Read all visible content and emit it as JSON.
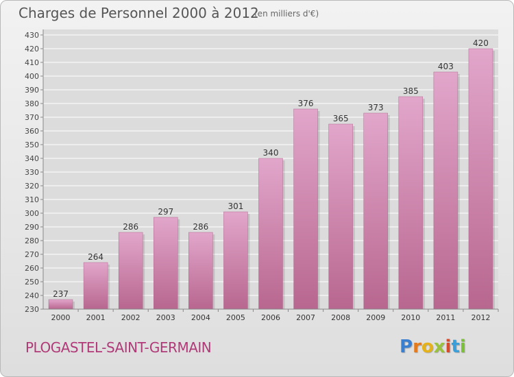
{
  "chart_data": {
    "type": "bar",
    "title": "Charges de Personnel 2000 à 2012",
    "subtitle": "(en milliers d'€)",
    "categories": [
      "2000",
      "2001",
      "2002",
      "2003",
      "2004",
      "2005",
      "2006",
      "2007",
      "2008",
      "2009",
      "2010",
      "2011",
      "2012"
    ],
    "values": [
      237,
      264,
      286,
      297,
      286,
      301,
      340,
      376,
      365,
      373,
      385,
      403,
      420
    ],
    "ylim": [
      230,
      430
    ],
    "yticks": [
      230,
      240,
      250,
      260,
      270,
      280,
      290,
      300,
      310,
      320,
      330,
      340,
      350,
      360,
      370,
      380,
      390,
      400,
      410,
      420,
      430
    ],
    "xlabel": "",
    "ylabel": "",
    "grid": true,
    "colors": {
      "bar_top": "#e2a6cb",
      "bar_bottom": "#b8678f",
      "grid": "#ffffff"
    }
  },
  "footer": {
    "commune": "PLOGASTEL-SAINT-GERMAIN",
    "logo_letters": [
      "P",
      "r",
      "o",
      "x",
      "i",
      "t",
      "i"
    ],
    "logo_colors": [
      "#3a7fd0",
      "#e67a1a",
      "#e5b21a",
      "#9ac23c",
      "#d94a2a",
      "#3a9fd8",
      "#7cbf3a"
    ]
  }
}
